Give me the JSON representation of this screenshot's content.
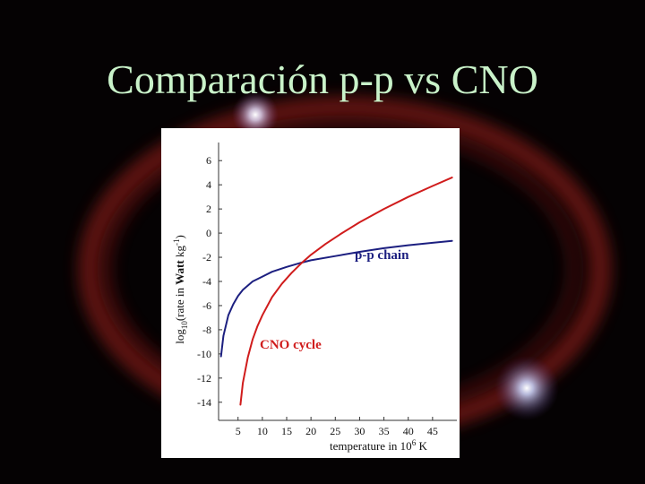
{
  "slide": {
    "title": "Comparación p-p vs CNO"
  },
  "colors": {
    "background": "#050203",
    "title": "#c9f2c9",
    "nebula": "#b0221c",
    "pp_chain": "#1c1f80",
    "cno_cycle": "#d01c1c"
  },
  "chart_data": {
    "type": "line",
    "xlabel_parts": {
      "main": "temperature in 10",
      "sup": "6",
      "unit": " K"
    },
    "ylabel_parts": {
      "pre": "log",
      "sub": "10",
      "mid": "(rate in ",
      "bold": "Watt",
      "post": " kg",
      "sup": "-1",
      "end": ")"
    },
    "x_ticks": [
      5,
      10,
      15,
      20,
      25,
      30,
      35,
      40,
      45
    ],
    "y_ticks": [
      6,
      4,
      2,
      0,
      -2,
      -4,
      -6,
      -8,
      -10,
      -12,
      -14
    ],
    "xlim": [
      1,
      50
    ],
    "ylim": [
      -15.5,
      7.5
    ],
    "grid": false,
    "series": [
      {
        "name": "p-p chain",
        "color": "#1c1f80",
        "x": [
          1.5,
          2,
          3,
          4,
          5,
          6,
          8,
          10,
          12,
          15,
          18,
          20,
          25,
          30,
          35,
          40,
          45,
          49
        ],
        "y": [
          -10.2,
          -8.5,
          -6.8,
          -5.9,
          -5.2,
          -4.7,
          -4.0,
          -3.6,
          -3.2,
          -2.8,
          -2.45,
          -2.25,
          -1.9,
          -1.55,
          -1.25,
          -1.0,
          -0.8,
          -0.65
        ]
      },
      {
        "name": "CNO cycle",
        "color": "#d01c1c",
        "x": [
          5.5,
          6,
          7,
          8,
          9,
          10,
          12,
          14,
          16,
          18,
          20,
          23,
          26,
          30,
          35,
          40,
          45,
          49
        ],
        "y": [
          -14.2,
          -12.4,
          -10.3,
          -8.8,
          -7.7,
          -6.8,
          -5.3,
          -4.2,
          -3.3,
          -2.5,
          -1.8,
          -0.9,
          -0.1,
          0.9,
          2.0,
          3.0,
          3.9,
          4.6
        ]
      }
    ]
  }
}
